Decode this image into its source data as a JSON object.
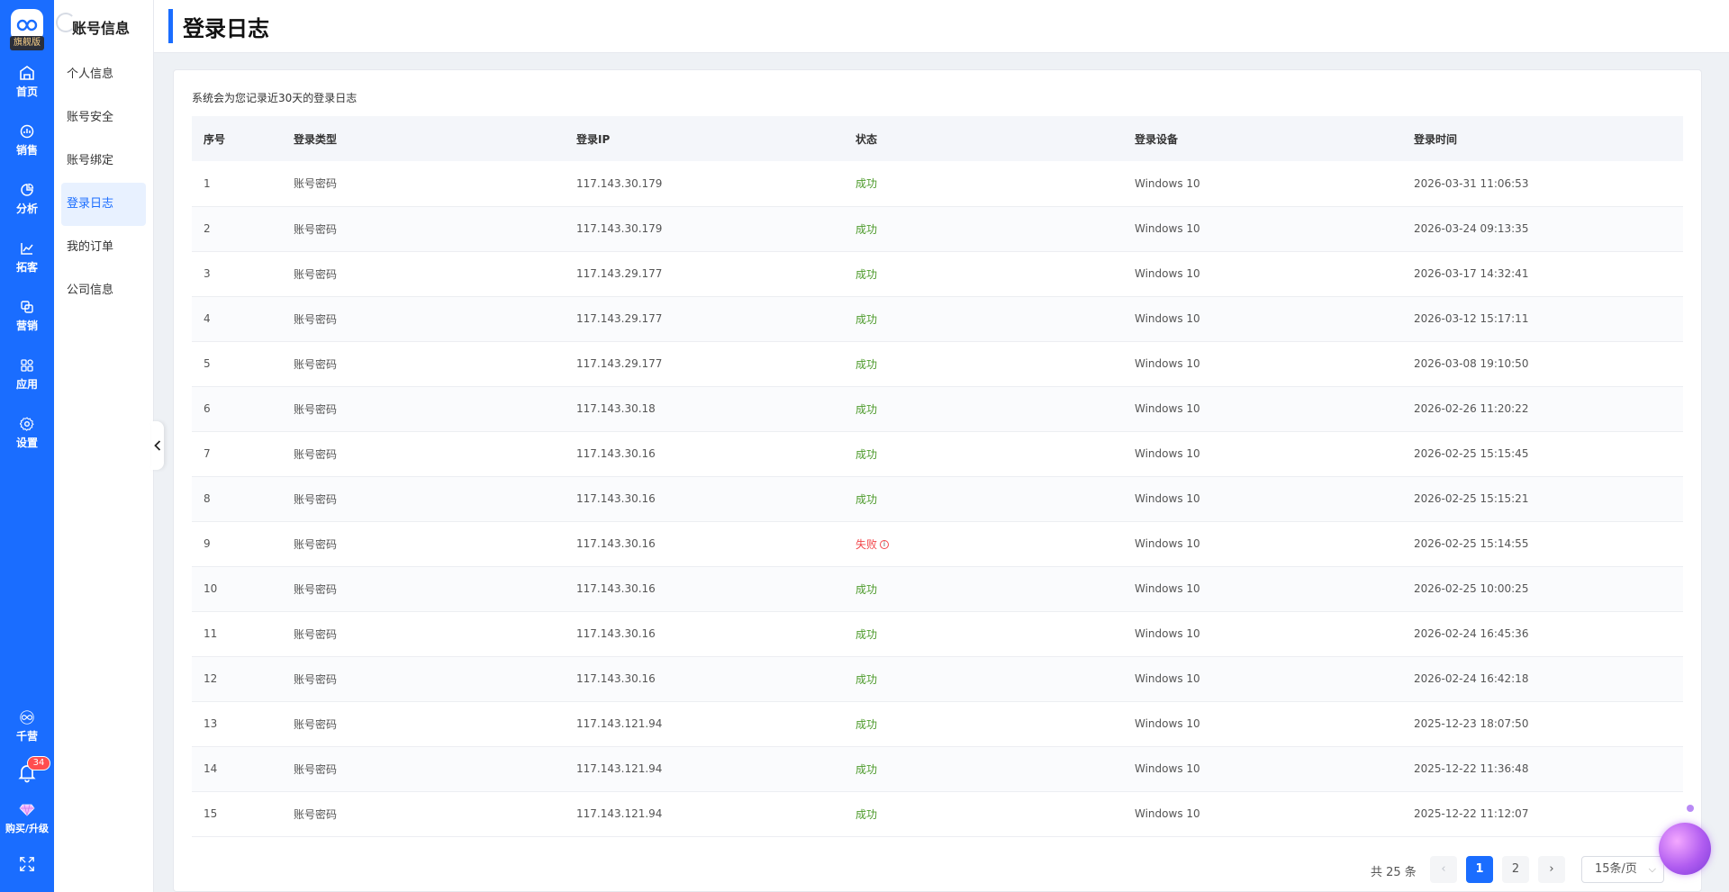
{
  "rail": {
    "brand_badge": "旗舰版",
    "items": [
      {
        "label": "首页",
        "icon": "home-icon"
      },
      {
        "label": "销售",
        "icon": "sales-icon"
      },
      {
        "label": "分析",
        "icon": "pie-chart-icon"
      },
      {
        "label": "拓客",
        "icon": "line-chart-icon"
      },
      {
        "label": "营销",
        "icon": "marketing-icon"
      },
      {
        "label": "应用",
        "icon": "apps-grid-icon"
      },
      {
        "label": "设置",
        "icon": "gear-icon"
      }
    ],
    "qianying_label": "千营",
    "notification_count": "34",
    "upgrade_label": "购买/升级"
  },
  "submenu": {
    "title": "账号信息",
    "items": [
      {
        "label": "个人信息"
      },
      {
        "label": "账号安全"
      },
      {
        "label": "账号绑定"
      },
      {
        "label": "登录日志"
      },
      {
        "label": "我的订单"
      },
      {
        "label": "公司信息"
      }
    ],
    "active_index": 3
  },
  "header": {
    "title": "登录日志"
  },
  "note": "系统会为您记录近30天的登录日志",
  "table": {
    "columns": [
      "序号",
      "登录类型",
      "登录IP",
      "状态",
      "登录设备",
      "登录时间"
    ],
    "rows": [
      [
        "1",
        "账号密码",
        "117.143.30.179",
        "成功",
        "Windows 10",
        "2026-03-31 11:06:53"
      ],
      [
        "2",
        "账号密码",
        "117.143.30.179",
        "成功",
        "Windows 10",
        "2026-03-24 09:13:35"
      ],
      [
        "3",
        "账号密码",
        "117.143.29.177",
        "成功",
        "Windows 10",
        "2026-03-17 14:32:41"
      ],
      [
        "4",
        "账号密码",
        "117.143.29.177",
        "成功",
        "Windows 10",
        "2026-03-12 15:17:11"
      ],
      [
        "5",
        "账号密码",
        "117.143.29.177",
        "成功",
        "Windows 10",
        "2026-03-08 19:10:50"
      ],
      [
        "6",
        "账号密码",
        "117.143.30.18",
        "成功",
        "Windows 10",
        "2026-02-26 11:20:22"
      ],
      [
        "7",
        "账号密码",
        "117.143.30.16",
        "成功",
        "Windows 10",
        "2026-02-25 15:15:45"
      ],
      [
        "8",
        "账号密码",
        "117.143.30.16",
        "成功",
        "Windows 10",
        "2026-02-25 15:15:21"
      ],
      [
        "9",
        "账号密码",
        "117.143.30.16",
        "失败",
        "Windows 10",
        "2026-02-25 15:14:55"
      ],
      [
        "10",
        "账号密码",
        "117.143.30.16",
        "成功",
        "Windows 10",
        "2026-02-25 10:00:25"
      ],
      [
        "11",
        "账号密码",
        "117.143.30.16",
        "成功",
        "Windows 10",
        "2026-02-24 16:45:36"
      ],
      [
        "12",
        "账号密码",
        "117.143.30.16",
        "成功",
        "Windows 10",
        "2026-02-24 16:42:18"
      ],
      [
        "13",
        "账号密码",
        "117.143.121.94",
        "成功",
        "Windows 10",
        "2025-12-23 18:07:50"
      ],
      [
        "14",
        "账号密码",
        "117.143.121.94",
        "成功",
        "Windows 10",
        "2025-12-22 11:36:48"
      ],
      [
        "15",
        "账号密码",
        "117.143.121.94",
        "成功",
        "Windows 10",
        "2025-12-22 11:12:07"
      ]
    ]
  },
  "pagination": {
    "total_label": "共 25 条",
    "pages": [
      "1",
      "2"
    ],
    "current": "1",
    "page_size": "15条/页"
  },
  "colors": {
    "accent": "#1a6dff",
    "success": "#4c9a2a",
    "fail": "#f2464a"
  }
}
